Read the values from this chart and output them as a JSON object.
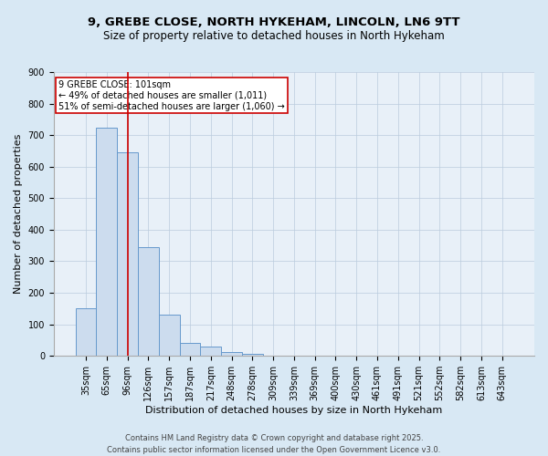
{
  "title_line1": "9, GREBE CLOSE, NORTH HYKEHAM, LINCOLN, LN6 9TT",
  "title_line2": "Size of property relative to detached houses in North Hykeham",
  "xlabel": "Distribution of detached houses by size in North Hykeham",
  "ylabel": "Number of detached properties",
  "categories": [
    "35sqm",
    "65sqm",
    "96sqm",
    "126sqm",
    "157sqm",
    "187sqm",
    "217sqm",
    "248sqm",
    "278sqm",
    "309sqm",
    "339sqm",
    "369sqm",
    "400sqm",
    "430sqm",
    "461sqm",
    "491sqm",
    "521sqm",
    "552sqm",
    "582sqm",
    "613sqm",
    "643sqm"
  ],
  "values": [
    150,
    725,
    645,
    345,
    132,
    42,
    30,
    12,
    6,
    0,
    0,
    0,
    0,
    0,
    0,
    0,
    0,
    0,
    0,
    0,
    0
  ],
  "bar_color": "#ccdcee",
  "bar_edge_color": "#6699cc",
  "vline_x": 2.0,
  "vline_color": "#cc0000",
  "annotation_text": "9 GREBE CLOSE: 101sqm\n← 49% of detached houses are smaller (1,011)\n51% of semi-detached houses are larger (1,060) →",
  "annotation_box_color": "#ffffff",
  "annotation_box_edge_color": "#cc0000",
  "ylim": [
    0,
    900
  ],
  "yticks": [
    0,
    100,
    200,
    300,
    400,
    500,
    600,
    700,
    800,
    900
  ],
  "grid_color": "#bbccdd",
  "background_color": "#d8e8f4",
  "plot_background_color": "#e8f0f8",
  "footer_line1": "Contains HM Land Registry data © Crown copyright and database right 2025.",
  "footer_line2": "Contains public sector information licensed under the Open Government Licence v3.0.",
  "title_fontsize": 9.5,
  "subtitle_fontsize": 8.5,
  "axis_label_fontsize": 8,
  "tick_fontsize": 7,
  "annotation_fontsize": 7,
  "footer_fontsize": 6
}
